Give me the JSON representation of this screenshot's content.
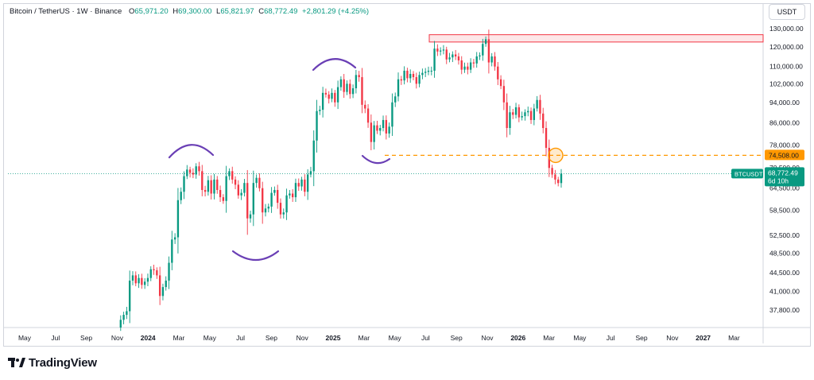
{
  "legend": {
    "title": "Bitcoin / TetherUS · 1W · Binance",
    "open_label": "O",
    "open": "65,971.20",
    "high_label": "H",
    "high": "69,300.00",
    "low_label": "L",
    "low": "65,821.97",
    "close_label": "C",
    "close": "68,772.49",
    "change": "+2,801.29 (+4.25%)"
  },
  "currency": "USDT",
  "branding": "TradingView",
  "colors": {
    "up": "#089981",
    "down": "#f23645",
    "level": "#ff9800",
    "highlight": "#e91e63",
    "annotation": "#6a3fb5"
  },
  "chart_data": {
    "type": "candlestick",
    "symbol": "BTCUSDT",
    "timeframe": "1W",
    "y_ticks": [
      "130,000.00",
      "120,000.00",
      "110,000.00",
      "102,000.00",
      "94,000.00",
      "86,000.00",
      "78,000.00",
      "70,500.00",
      "64,500.00",
      "58,500.00",
      "52,500.00",
      "48,500.00",
      "44,500.00",
      "41,000.00",
      "37,800.00"
    ],
    "x_ticks": [
      "May",
      "Jul",
      "Sep",
      "Nov",
      "2024",
      "Mar",
      "May",
      "Jul",
      "Sep",
      "Nov",
      "2025",
      "Mar",
      "May",
      "Jul",
      "Sep",
      "Nov",
      "2026",
      "Mar",
      "May",
      "Jul",
      "Sep",
      "Nov",
      "2027",
      "Mar"
    ],
    "ylim": [
      35000,
      135000
    ],
    "log_scale": true,
    "marker_lines": [
      {
        "label": "74,508.00",
        "value": 74508,
        "style": "dashed"
      },
      {
        "label": "BTCUSDT",
        "value": 68772.49,
        "price": "68,772.49",
        "countdown": "6d 10h"
      }
    ],
    "resistance_zone": {
      "low": 122500,
      "high": 126500
    },
    "closes": [
      35000,
      36200,
      37000,
      37600,
      43000,
      44000,
      42500,
      43500,
      42200,
      42800,
      43500,
      45200,
      45000,
      44000,
      40200,
      41800,
      43000,
      46500,
      51500,
      52000,
      61200,
      63500,
      68000,
      70000,
      69000,
      68500,
      71000,
      69500,
      64000,
      63500,
      66800,
      63000,
      67000,
      64000,
      62000,
      61000,
      68000,
      69500,
      67000,
      65500,
      62500,
      63200,
      66000,
      56500,
      57500,
      66000,
      67500,
      64500,
      58000,
      59000,
      59500,
      63200,
      64000,
      60500,
      57500,
      58000,
      62500,
      63000,
      62000,
      66000,
      65000,
      67000,
      63500,
      68500,
      69500,
      79500,
      90500,
      91000,
      98000,
      97300,
      95500,
      98000,
      94000,
      100500,
      104000,
      98400,
      102000,
      97500,
      100000,
      106000,
      105000,
      93000,
      91500,
      86000,
      79000,
      85000,
      83000,
      84000,
      87000,
      82000,
      84500,
      94000,
      96500,
      104000,
      103500,
      108000,
      104500,
      106500,
      105000,
      102000,
      106000,
      107000,
      107500,
      108000,
      108000,
      119000,
      117500,
      118000,
      118500,
      113500,
      114500,
      116000,
      115000,
      113000,
      108500,
      110000,
      108500,
      112000,
      111500,
      115000,
      115500,
      121500,
      124000,
      112000,
      115000,
      110000,
      104000,
      101000,
      94000,
      84000,
      90000,
      89000,
      92000,
      88000,
      88500,
      90000,
      90500,
      87000,
      91500,
      95000,
      89500,
      84000,
      77000,
      70500,
      68500,
      67000,
      65971,
      68772.49
    ],
    "last_price": 68772.49
  }
}
